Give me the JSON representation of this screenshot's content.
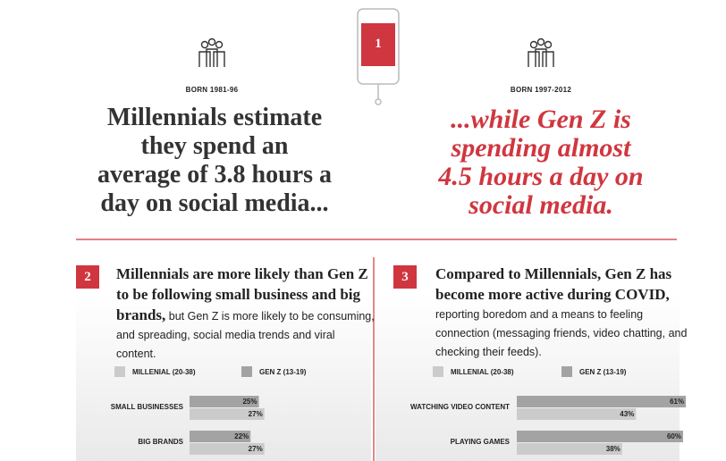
{
  "section1": {
    "badge": "1",
    "left": {
      "born": "BORN 1981-96",
      "headline": [
        "Millennials estimate",
        "they spend an",
        "average of 3.8 hours a",
        "day on social media..."
      ]
    },
    "right": {
      "born": "BORN 1997-2012",
      "headline": [
        "...while Gen Z is",
        "spending almost",
        "4.5 hours a day on",
        "social media."
      ]
    }
  },
  "section2": {
    "badge": "2",
    "text_bold": "Millennials are more likely than Gen Z to be following small business and big brands,",
    "text_regular": " but Gen Z is more likely to be consuming, and spreading, social media trends and viral content."
  },
  "section3": {
    "badge": "3",
    "text_bold": "Compared to Millennials, Gen Z has become more active during COVID,",
    "text_regular": " reporting boredom and a means to feeling connection (messaging friends, video chatting, and checking their feeds)."
  },
  "chart_data": [
    {
      "type": "bar",
      "orientation": "horizontal",
      "categories": [
        "SMALL BUSINESSES",
        "BIG BRANDS"
      ],
      "series": [
        {
          "name": "MILLENIAL (20-38)",
          "color": "#cbcbcb",
          "values": [
            27,
            27
          ],
          "value_labels": [
            "27%",
            "27%"
          ]
        },
        {
          "name": "GEN Z (13-19)",
          "color": "#a3a3a3",
          "values": [
            25,
            22
          ],
          "value_labels": [
            "25%",
            "22%"
          ]
        }
      ]
    },
    {
      "type": "bar",
      "orientation": "horizontal",
      "categories": [
        "WATCHING VIDEO CONTENT",
        "PLAYING GAMES"
      ],
      "series": [
        {
          "name": "MILLENIAL (20-38)",
          "color": "#cbcbcb",
          "values": [
            43,
            38
          ],
          "value_labels": [
            "43%",
            "38%"
          ]
        },
        {
          "name": "GEN Z (13-19)",
          "color": "#a3a3a3",
          "values": [
            61,
            60
          ],
          "value_labels": [
            "61%",
            "60%"
          ]
        }
      ]
    }
  ]
}
